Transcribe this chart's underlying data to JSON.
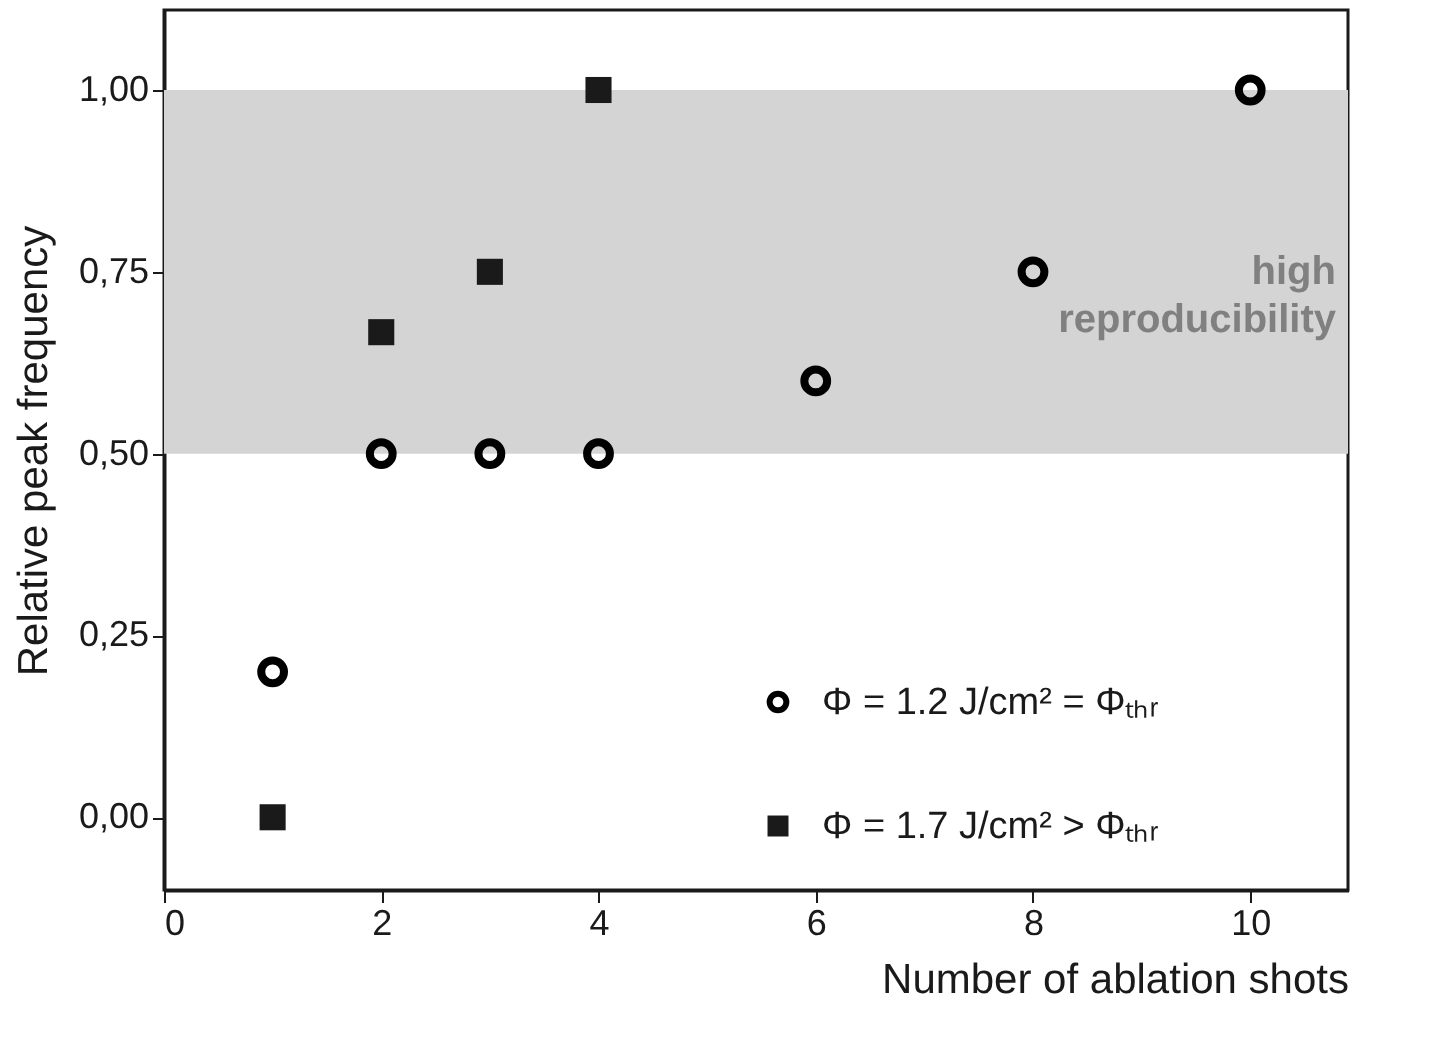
{
  "chart_data": {
    "type": "scatter",
    "xlabel": "Number of ablation shots",
    "ylabel": "Relative peak frequency",
    "series": [
      {
        "name": "Φ = 1.2 J/cm² = Φₜₕᵣ",
        "color": "#000000",
        "marker": "circle",
        "x": [
          1,
          2,
          3,
          4,
          6,
          8,
          10
        ],
        "values": [
          0.2,
          0.5,
          0.5,
          0.5,
          0.6,
          0.75,
          1.0
        ]
      },
      {
        "name": "Φ = 1.7 J/cm² > Φₜₕᵣ",
        "color": "#1a1a1a",
        "marker": "square",
        "x": [
          1,
          2,
          3,
          4
        ],
        "values": [
          0.0,
          0.667,
          0.75,
          1.0
        ]
      }
    ],
    "xlim": [
      0,
      10.9
    ],
    "xticks": [
      0,
      2,
      4,
      6,
      8,
      10
    ],
    "ylim": [
      -0.1,
      1.11
    ],
    "yticks": [
      {
        "value": 0,
        "label": "0,00"
      },
      {
        "value": 0.25,
        "label": "0,25"
      },
      {
        "value": 0.5,
        "label": "0,50"
      },
      {
        "value": 0.75,
        "label": "0,75"
      },
      {
        "value": 1,
        "label": "1,00"
      }
    ],
    "bands": [
      {
        "axis": "y",
        "from": 0.5,
        "to": 1.0,
        "label": "high reproducibility",
        "color": "#d4d4d4"
      }
    ],
    "legend": "bottom right",
    "grid": false
  }
}
